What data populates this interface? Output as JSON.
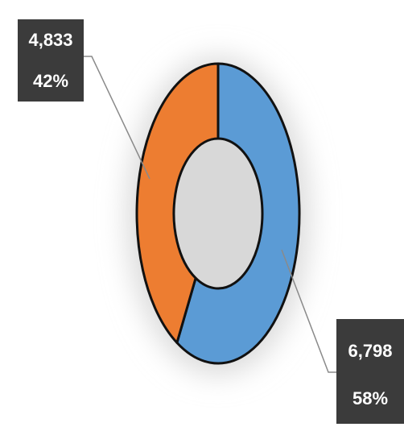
{
  "chart_data": {
    "type": "donut",
    "values": [
      6798,
      4833
    ],
    "value_labels": [
      "6,798",
      "4,833"
    ],
    "percents": [
      58,
      42
    ],
    "percent_labels": [
      "58%",
      "42%"
    ],
    "colors": [
      "#5b9bd5",
      "#ed7d31"
    ]
  }
}
